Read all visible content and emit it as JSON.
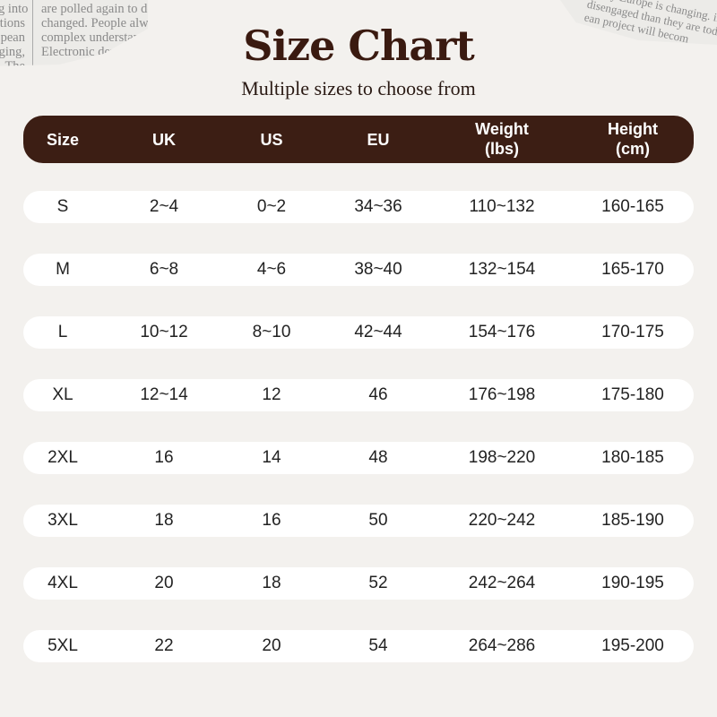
{
  "decor": {
    "scrap_left_col1": [
      "g into",
      "tions",
      "pean",
      "ging,",
      "The"
    ],
    "scrap_left_col2": [
      "are polled again to determin",
      "changed. People always de",
      "complex understandi",
      "Electronic democrac"
    ],
    "scrap_right": [
      "e way Europe is changing. if European",
      "disengaged than they are today. The",
      "ean project will becom"
    ]
  },
  "title": "Size Chart",
  "subtitle": "Multiple sizes to choose from",
  "colors": {
    "header": "#3c1e14",
    "title": "#3a1a10",
    "row": "#ffffff"
  },
  "columns": [
    "Size",
    "UK",
    "US",
    "EU",
    "Weight\n(lbs)",
    "Height\n(cm)"
  ],
  "rows": [
    [
      "S",
      "2~4",
      "0~2",
      "34~36",
      "110~132",
      "160-165"
    ],
    [
      "M",
      "6~8",
      "4~6",
      "38~40",
      "132~154",
      "165-170"
    ],
    [
      "L",
      "10~12",
      "8~10",
      "42~44",
      "154~176",
      "170-175"
    ],
    [
      "XL",
      "12~14",
      "12",
      "46",
      "176~198",
      "175-180"
    ],
    [
      "2XL",
      "16",
      "14",
      "48",
      "198~220",
      "180-185"
    ],
    [
      "3XL",
      "18",
      "16",
      "50",
      "220~242",
      "185-190"
    ],
    [
      "4XL",
      "20",
      "18",
      "52",
      "242~264",
      "190-195"
    ],
    [
      "5XL",
      "22",
      "20",
      "54",
      "264~286",
      "195-200"
    ]
  ]
}
